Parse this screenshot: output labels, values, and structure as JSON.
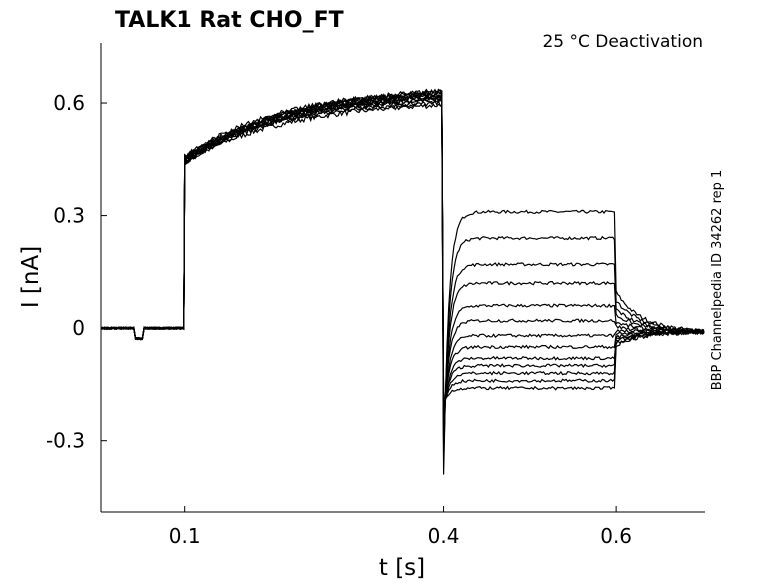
{
  "chart_data": {
    "type": "line",
    "title": "TALK1  Rat  CHO_FT",
    "subtitle": "25 °C  Deactivation",
    "side_label": "BBP Channelpedia ID 34262 rep 1",
    "xlabel": "t [s]",
    "ylabel": "I [nA]",
    "xlim": [
      0.003,
      0.703
    ],
    "ylim": [
      -0.49,
      0.76
    ],
    "x_ticks": [
      {
        "value": 0.1,
        "label": "0.1"
      },
      {
        "value": 0.4,
        "label": "0.4"
      },
      {
        "value": 0.6,
        "label": "0.6"
      }
    ],
    "y_ticks": [
      {
        "value": 0.6,
        "label": "0.6"
      },
      {
        "value": 0.3,
        "label": "0.3"
      },
      {
        "value": 0,
        "label": "0"
      },
      {
        "value": -0.3,
        "label": "-0.3"
      }
    ],
    "grid": false,
    "line_color": "#000000",
    "protocol": {
      "prepulse_start": 0.1,
      "test_pulse_start": 0.4,
      "test_pulse_end": 0.6,
      "end": 0.703,
      "baseline": 0.0,
      "prepulse_peak_range": [
        0.44,
        0.63
      ],
      "tail_end": -0.01
    },
    "series": [
      {
        "prepulse_end": 0.595,
        "test_level": 0.31,
        "tail_peak": -0.39
      },
      {
        "prepulse_end": 0.6,
        "test_level": 0.24,
        "tail_peak": -0.36
      },
      {
        "prepulse_end": 0.605,
        "test_level": 0.17,
        "tail_peak": -0.33
      },
      {
        "prepulse_end": 0.61,
        "test_level": 0.12,
        "tail_peak": -0.31
      },
      {
        "prepulse_end": 0.612,
        "test_level": 0.06,
        "tail_peak": -0.29
      },
      {
        "prepulse_end": 0.615,
        "test_level": 0.02,
        "tail_peak": -0.27
      },
      {
        "prepulse_end": 0.618,
        "test_level": -0.02,
        "tail_peak": -0.26
      },
      {
        "prepulse_end": 0.62,
        "test_level": -0.05,
        "tail_peak": -0.25
      },
      {
        "prepulse_end": 0.622,
        "test_level": -0.08,
        "tail_peak": -0.24
      },
      {
        "prepulse_end": 0.625,
        "test_level": -0.1,
        "tail_peak": -0.23
      },
      {
        "prepulse_end": 0.627,
        "test_level": -0.12,
        "tail_peak": -0.22
      },
      {
        "prepulse_end": 0.63,
        "test_level": -0.14,
        "tail_peak": -0.21
      },
      {
        "prepulse_end": 0.632,
        "test_level": -0.16,
        "tail_peak": -0.2
      }
    ]
  }
}
